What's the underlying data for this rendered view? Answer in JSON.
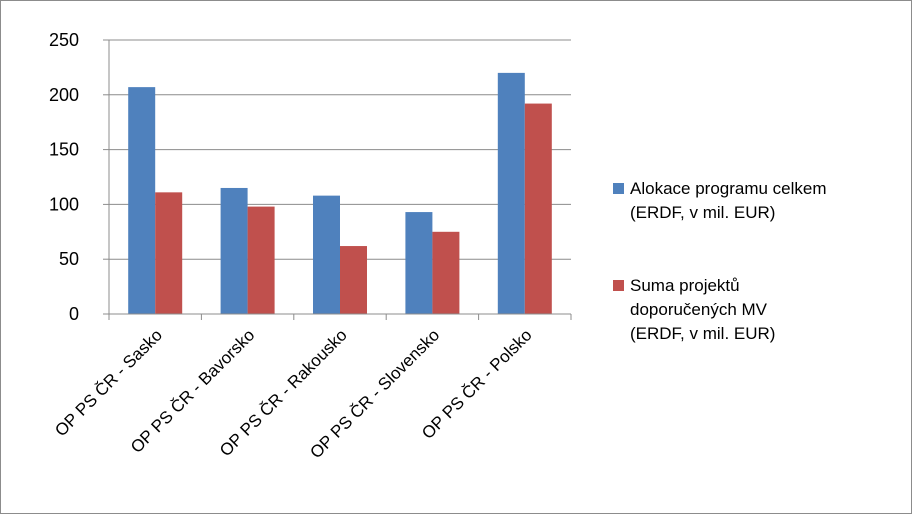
{
  "chart_data": {
    "type": "bar",
    "categories": [
      "OP PS ČR - Sasko",
      "OP PS ČR - Bavorsko",
      "OP PS ČR - Rakousko",
      "OP PS ČR - Slovensko",
      "OP PS ČR - Polsko"
    ],
    "series": [
      {
        "name": "Alokace programu celkem (ERDF, v mil. EUR)",
        "legend_lines": [
          "Alokace programu celkem",
          "(ERDF, v mil. EUR)"
        ],
        "color": "#4f81bd",
        "values": [
          207,
          115,
          108,
          93,
          220
        ]
      },
      {
        "name": "Suma projektů doporučených MV (ERDF, v mil. EUR)",
        "legend_lines": [
          "Suma projektů",
          "doporučených MV",
          "(ERDF, v mil. EUR)"
        ],
        "color": "#c0504d",
        "values": [
          111,
          98,
          62,
          75,
          192
        ]
      }
    ],
    "yticks": [
      "0",
      "50",
      "100",
      "150",
      "200",
      "250"
    ],
    "ylim": [
      0,
      250
    ],
    "grid": true,
    "legend_position": "right",
    "title": "",
    "xlabel": "",
    "ylabel": ""
  }
}
